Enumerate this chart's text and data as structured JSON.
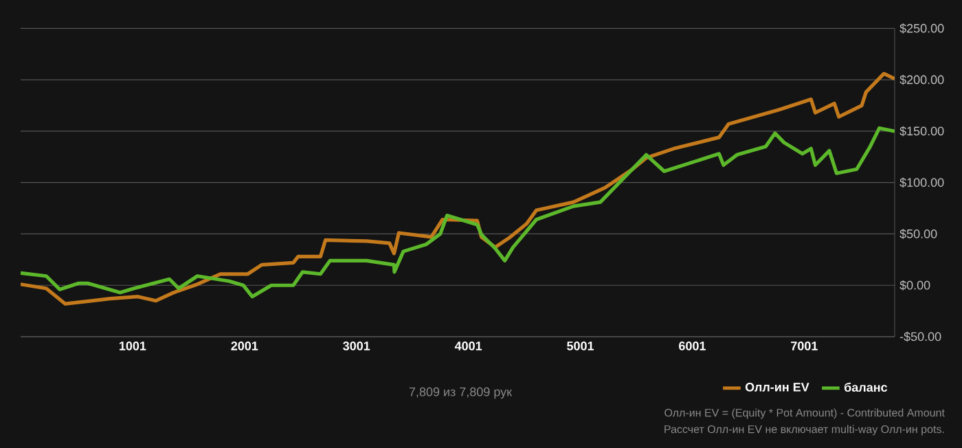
{
  "chart_data": {
    "type": "line",
    "xlim": [
      1,
      7809
    ],
    "xticks": [
      1001,
      2001,
      3001,
      4001,
      5001,
      6001,
      7001
    ],
    "ylim": [
      -50,
      250
    ],
    "yticks": [
      {
        "value": -50,
        "label": "-$50.00"
      },
      {
        "value": 0,
        "label": "$0.00"
      },
      {
        "value": 50,
        "label": "$50.00"
      },
      {
        "value": 100,
        "label": "$100.00"
      },
      {
        "value": 150,
        "label": "$150.00"
      },
      {
        "value": 200,
        "label": "$200.00"
      },
      {
        "value": 250,
        "label": "$250.00"
      }
    ],
    "grid": "y",
    "legend": "bottom right",
    "series": [
      {
        "name": "Олл-ин EV",
        "color": "#c47a1c",
        "x": [
          1,
          230,
          400,
          645,
          800,
          1050,
          1210,
          1370,
          1580,
          1785,
          2030,
          2155,
          2437,
          2480,
          2680,
          2724,
          3092,
          3296,
          3337,
          3380,
          3670,
          3770,
          4080,
          4117,
          4240,
          4363,
          4522,
          4608,
          4940,
          5222,
          5467,
          5590,
          5835,
          6240,
          6325,
          6780,
          7062,
          7100,
          7270,
          7310,
          7515,
          7553,
          7713,
          7809
        ],
        "values": [
          1,
          -3,
          -18,
          -15,
          -13,
          -11,
          -15,
          -7,
          1,
          11,
          11,
          20,
          22,
          28,
          28,
          44,
          43,
          41,
          31,
          51,
          47,
          64,
          63,
          47,
          37,
          46,
          60,
          73,
          81,
          95,
          113,
          124,
          133,
          144,
          157,
          171,
          181,
          168,
          177,
          164,
          175,
          188,
          206,
          201
        ]
      },
      {
        "name": "баланс",
        "color": "#5cb82a",
        "x": [
          1,
          230,
          350,
          520,
          600,
          890,
          1013,
          1330,
          1413,
          1580,
          1866,
          1990,
          2070,
          2240,
          2437,
          2520,
          2680,
          2765,
          3092,
          3337,
          3340,
          3420,
          3626,
          3750,
          3810,
          4080,
          4120,
          4240,
          4326,
          4400,
          4608,
          4940,
          5180,
          5590,
          5750,
          6240,
          6280,
          6400,
          6657,
          6740,
          6820,
          6985,
          7062,
          7100,
          7225,
          7290,
          7470,
          7590,
          7672,
          7809
        ],
        "values": [
          12,
          9,
          -4,
          2,
          2,
          -7,
          -3,
          6,
          -3,
          9,
          4,
          0,
          -11,
          0,
          0,
          13,
          11,
          24,
          24,
          20,
          13,
          33,
          40,
          50,
          68,
          59,
          49,
          36,
          24,
          37,
          64,
          77,
          81,
          127,
          111,
          128,
          117,
          127,
          135,
          148,
          139,
          128,
          133,
          117,
          131,
          109,
          113,
          135,
          153,
          150
        ]
      }
    ],
    "annotations": [
      "7,809 из 7,809 рук",
      "Олл-ин EV = (Equity * Pot Amount) - Contributed Amount",
      "Рассчет Олл-ин EV не включает multi-way Олл-ин pots."
    ]
  }
}
